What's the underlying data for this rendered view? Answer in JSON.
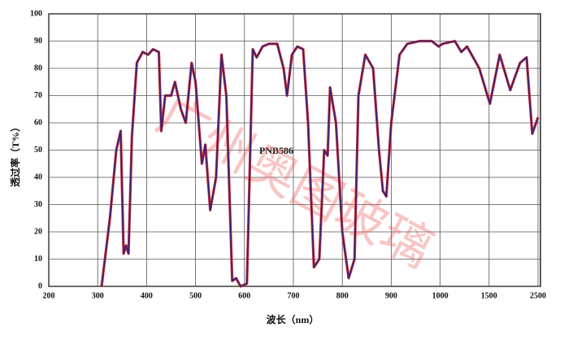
{
  "chart_data": {
    "type": "line",
    "annotation": "PNB586",
    "xlabel": "波长（nm）",
    "ylabel": "透过率（T%）",
    "watermark": "广州奥图玻璃",
    "xlim": [
      200,
      2500
    ],
    "xticks": [
      200,
      300,
      400,
      500,
      600,
      700,
      800,
      900,
      1000,
      1500,
      2500
    ],
    "ylim": [
      0,
      100
    ],
    "yticks": [
      0,
      10,
      20,
      30,
      40,
      50,
      60,
      70,
      80,
      90,
      100
    ],
    "grid": true,
    "x": [
      308,
      325,
      338,
      347,
      353,
      358,
      363,
      370,
      380,
      392,
      403,
      413,
      425,
      430,
      438,
      450,
      458,
      470,
      480,
      492,
      500,
      513,
      520,
      530,
      542,
      553,
      563,
      575,
      583,
      592,
      605,
      617,
      625,
      637,
      650,
      667,
      680,
      687,
      697,
      708,
      720,
      730,
      742,
      753,
      763,
      770,
      775,
      787,
      800,
      813,
      825,
      833,
      847,
      863,
      875,
      883,
      890,
      900,
      917,
      933,
      958,
      983,
      997,
      1025,
      1150,
      1217,
      1275,
      1400,
      1517,
      1717,
      1933,
      2133,
      2267,
      2383,
      2500
    ],
    "series": [
      {
        "color": "#3b2373",
        "values": [
          0,
          25,
          50,
          57,
          12,
          15,
          12,
          55,
          82,
          86,
          85,
          87,
          86,
          57,
          70,
          70,
          75,
          65,
          60,
          82,
          75,
          45,
          52,
          28,
          40,
          85,
          70,
          2,
          3,
          0,
          1,
          87,
          84,
          88,
          89,
          89,
          80,
          70,
          85,
          88,
          87,
          60,
          7,
          10,
          50,
          48,
          73,
          60,
          20,
          3,
          10,
          70,
          85,
          80,
          50,
          35,
          33,
          60,
          85,
          89,
          90,
          90,
          88,
          89,
          90,
          86,
          88,
          80,
          67,
          85,
          72,
          82,
          84,
          56,
          62
        ]
      }
    ]
  }
}
